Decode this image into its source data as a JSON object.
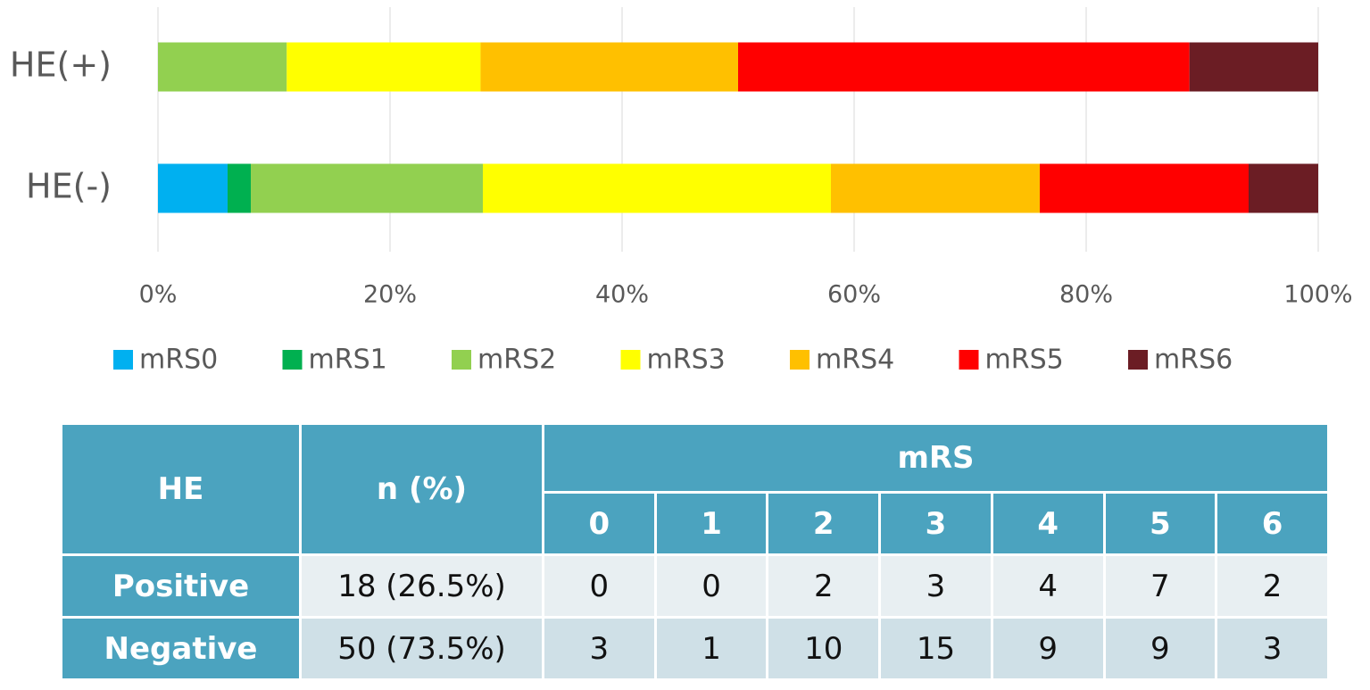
{
  "chart_data": {
    "type": "stacked_barh",
    "categories": [
      "HE(+)",
      "HE(-)"
    ],
    "series": [
      {
        "name": "mRS0",
        "color": "#00b0f0",
        "values": [
          0,
          6
        ]
      },
      {
        "name": "mRS1",
        "color": "#00b050",
        "values": [
          0,
          2
        ]
      },
      {
        "name": "mRS2",
        "color": "#92d050",
        "values": [
          11.1,
          20
        ]
      },
      {
        "name": "mRS3",
        "color": "#ffff00",
        "values": [
          16.7,
          30
        ]
      },
      {
        "name": "mRS4",
        "color": "#ffc000",
        "values": [
          22.2,
          18
        ]
      },
      {
        "name": "mRS5",
        "color": "#ff0000",
        "values": [
          38.9,
          18
        ]
      },
      {
        "name": "mRS6",
        "color": "#6b1d24",
        "values": [
          11.1,
          6
        ]
      }
    ],
    "xlim": [
      0,
      100
    ],
    "xticks": [
      {
        "value": 0,
        "label": "0%"
      },
      {
        "value": 20,
        "label": "20%"
      },
      {
        "value": 40,
        "label": "40%"
      },
      {
        "value": 60,
        "label": "60%"
      },
      {
        "value": 80,
        "label": "80%"
      },
      {
        "value": 100,
        "label": "100%"
      }
    ],
    "grid": true,
    "legend": "bottom"
  },
  "table": {
    "header": {
      "he": "HE",
      "n": "n  (%)",
      "mrs": "mRS",
      "levels": [
        "0",
        "1",
        "2",
        "3",
        "4",
        "5",
        "6"
      ]
    },
    "rows": [
      [
        "Positive",
        "18 (26.5%)",
        "0",
        "0",
        "2",
        "3",
        "4",
        "7",
        "2"
      ],
      [
        "Negative",
        "50 (73.5%)",
        "3",
        "1",
        "10",
        "15",
        "9",
        "9",
        "3"
      ]
    ]
  }
}
